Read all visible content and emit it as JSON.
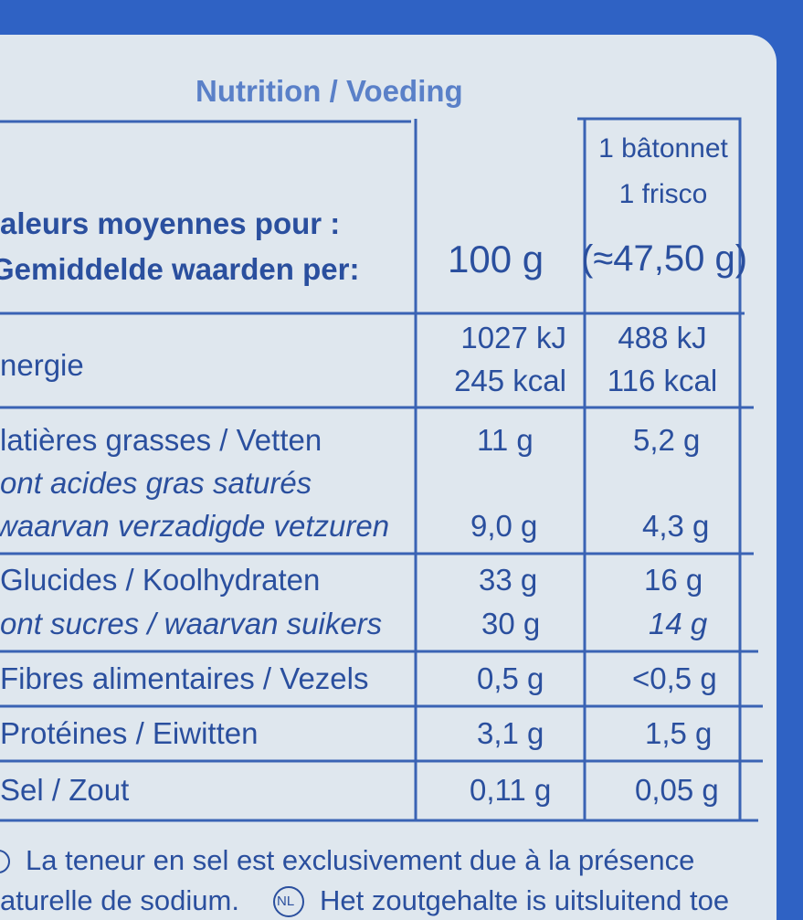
{
  "header": {
    "title": "Nutrition / Voeding"
  },
  "table": {
    "head": {
      "label": [
        "aleurs moyennes pour :",
        "Gemiddelde waarden per:"
      ],
      "per100": "100 g",
      "portion": [
        "1 bâtonnet",
        "1 frisco",
        "(≈47,50 g)"
      ]
    },
    "rows": [
      {
        "label": [
          "nergie"
        ],
        "per100": [
          "1027 kJ",
          "245 kcal"
        ],
        "portion": [
          "488 kJ",
          "116 kcal"
        ]
      },
      {
        "label": [
          "latières grasses / Vetten",
          "ont acides gras saturés",
          "waarvan verzadigde vetzuren"
        ],
        "per100": [
          "11 g",
          "9,0 g"
        ],
        "portion": [
          "5,2 g",
          "4,3 g"
        ]
      },
      {
        "label": [
          "Glucides / Koolhydraten",
          "ont sucres / waarvan suikers"
        ],
        "per100": [
          "33 g",
          "30 g"
        ],
        "portion": [
          "16 g",
          "14 g"
        ]
      },
      {
        "label": [
          "Fibres alimentaires / Vezels"
        ],
        "per100": [
          "0,5 g"
        ],
        "portion": [
          "<0,5 g"
        ]
      },
      {
        "label": [
          "Protéines / Eiwitten"
        ],
        "per100": [
          "3,1 g"
        ],
        "portion": [
          "1,5 g"
        ]
      },
      {
        "label": [
          "Sel / Zout"
        ],
        "per100": [
          "0,11 g"
        ],
        "portion": [
          "0,05 g"
        ]
      }
    ]
  },
  "footer": {
    "line1": "La teneur en sel est exclusivement due à la présence",
    "line2a": "aturelle de sodium.",
    "badge": "NL",
    "line2b": "Het zoutgehalte is uitsluitend toe"
  }
}
